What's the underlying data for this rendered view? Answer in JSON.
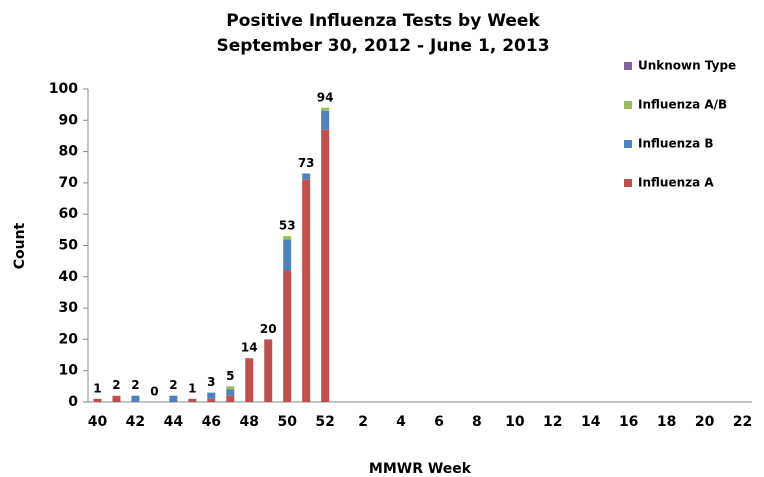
{
  "chart_data": {
    "type": "bar",
    "stacked": true,
    "title": "Positive Influenza Tests by Week",
    "subtitle": "September 30, 2012 - June 1, 2013",
    "x_label": "MMWR Week",
    "y_label": "Count",
    "categories": [
      "40",
      null,
      "42",
      null,
      "44",
      null,
      "46",
      null,
      "48",
      null,
      "50",
      null,
      "52",
      null,
      "2",
      null,
      "4",
      null,
      "6",
      null,
      "8",
      null,
      "10",
      null,
      "12",
      null,
      "14",
      null,
      "16",
      null,
      "18",
      null,
      "20",
      null,
      "22"
    ],
    "series": [
      {
        "name": "Influenza A",
        "color": "#c0504d",
        "values": [
          1,
          2,
          0,
          0,
          0,
          1,
          1,
          2,
          14,
          20,
          42,
          71,
          87,
          null,
          null,
          null,
          null,
          null,
          null,
          null,
          null,
          null,
          null,
          null,
          null,
          null,
          null,
          null,
          null,
          null,
          null,
          null,
          null,
          null,
          null
        ]
      },
      {
        "name": "Influenza B",
        "color": "#4f81bd",
        "values": [
          0,
          0,
          2,
          0,
          2,
          0,
          2,
          2,
          0,
          0,
          10,
          2,
          6,
          null,
          null,
          null,
          null,
          null,
          null,
          null,
          null,
          null,
          null,
          null,
          null,
          null,
          null,
          null,
          null,
          null,
          null,
          null,
          null,
          null,
          null
        ]
      },
      {
        "name": "Influenza A/B",
        "color": "#9bbb59",
        "values": [
          0,
          0,
          0,
          0,
          0,
          0,
          0,
          1,
          0,
          0,
          1,
          0,
          1,
          null,
          null,
          null,
          null,
          null,
          null,
          null,
          null,
          null,
          null,
          null,
          null,
          null,
          null,
          null,
          null,
          null,
          null,
          null,
          null,
          null,
          null
        ]
      },
      {
        "name": "Unknown Type",
        "color": "#8064a2",
        "values": [
          0,
          0,
          0,
          0,
          0,
          0,
          0,
          0,
          0,
          0,
          0,
          0,
          0,
          null,
          null,
          null,
          null,
          null,
          null,
          null,
          null,
          null,
          null,
          null,
          null,
          null,
          null,
          null,
          null,
          null,
          null,
          null,
          null,
          null,
          null
        ]
      }
    ],
    "totals": [
      1,
      2,
      2,
      0,
      2,
      1,
      3,
      5,
      14,
      20,
      53,
      73,
      94,
      null,
      null,
      null,
      null,
      null,
      null,
      null,
      null,
      null,
      null,
      null,
      null,
      null,
      null,
      null,
      null,
      null,
      null,
      null,
      null,
      null,
      null
    ],
    "ylim": [
      0,
      100
    ],
    "yticks": [
      0,
      10,
      20,
      30,
      40,
      50,
      60,
      70,
      80,
      90,
      100
    ],
    "grid": false,
    "legend": "top-right"
  }
}
